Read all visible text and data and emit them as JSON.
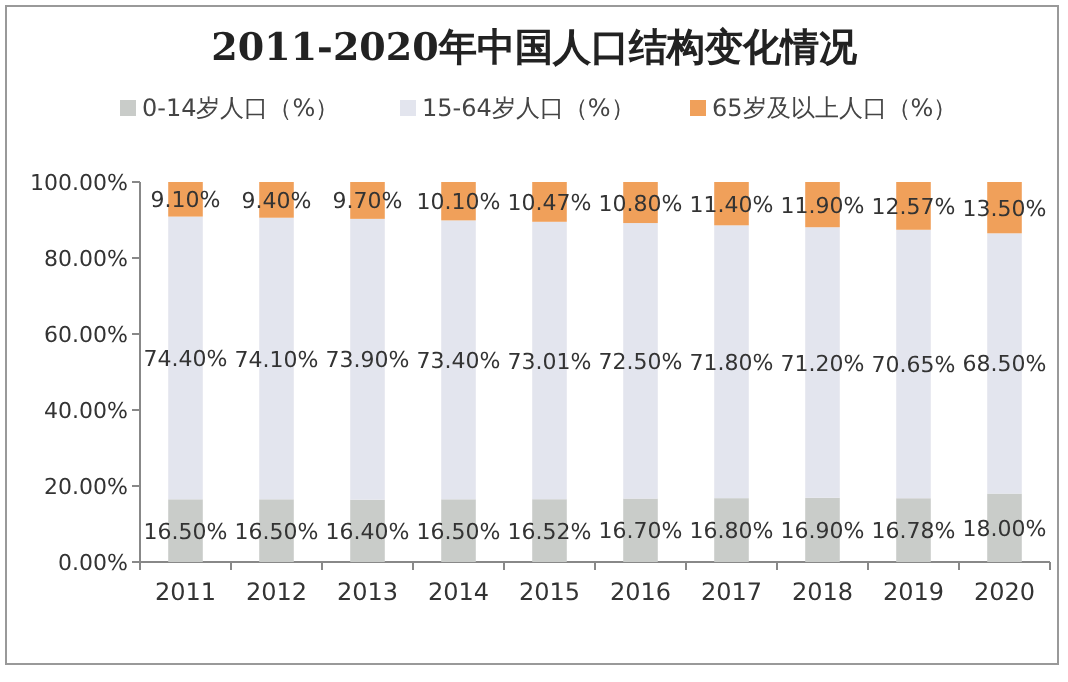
{
  "chart_data": {
    "type": "bar",
    "stacked": true,
    "title": "2011-2020年中国人口结构变化情况",
    "legend": "top",
    "categories": [
      "2011",
      "2012",
      "2013",
      "2014",
      "2015",
      "2016",
      "2017",
      "2018",
      "2019",
      "2020"
    ],
    "ylim": [
      0,
      100
    ],
    "yticks": [
      {
        "value": 0,
        "label": "0.00%"
      },
      {
        "value": 20,
        "label": "20.00%"
      },
      {
        "value": 40,
        "label": "40.00%"
      },
      {
        "value": 60,
        "label": "60.00%"
      },
      {
        "value": 80,
        "label": "80.00%"
      },
      {
        "value": 100,
        "label": "100.00%"
      }
    ],
    "series": [
      {
        "name": "0-14岁人口（%）",
        "color": "#c9ccc9",
        "values": [
          16.5,
          16.5,
          16.4,
          16.5,
          16.52,
          16.7,
          16.8,
          16.9,
          16.78,
          18.0
        ],
        "value_labels": [
          "16.50%",
          "16.50%",
          "16.40%",
          "16.50%",
          "16.52%",
          "16.70%",
          "16.80%",
          "16.90%",
          "16.78%",
          "18.00%"
        ]
      },
      {
        "name": "15-64岁人口（%）",
        "color": "#e3e5ee",
        "values": [
          74.4,
          74.1,
          73.9,
          73.4,
          73.01,
          72.5,
          71.8,
          71.2,
          70.65,
          68.5
        ],
        "value_labels": [
          "74.40%",
          "74.10%",
          "73.90%",
          "73.40%",
          "73.01%",
          "72.50%",
          "71.80%",
          "71.20%",
          "70.65%",
          "68.50%"
        ]
      },
      {
        "name": "65岁及以上人口（%）",
        "color": "#f0a05a",
        "values": [
          9.1,
          9.4,
          9.7,
          10.1,
          10.47,
          10.8,
          11.4,
          11.9,
          12.57,
          13.5
        ],
        "value_labels": [
          "9.10%",
          "9.40%",
          "9.70%",
          "10.10%",
          "10.47%",
          "10.80%",
          "11.40%",
          "11.90%",
          "12.57%",
          "13.50%"
        ]
      }
    ]
  }
}
